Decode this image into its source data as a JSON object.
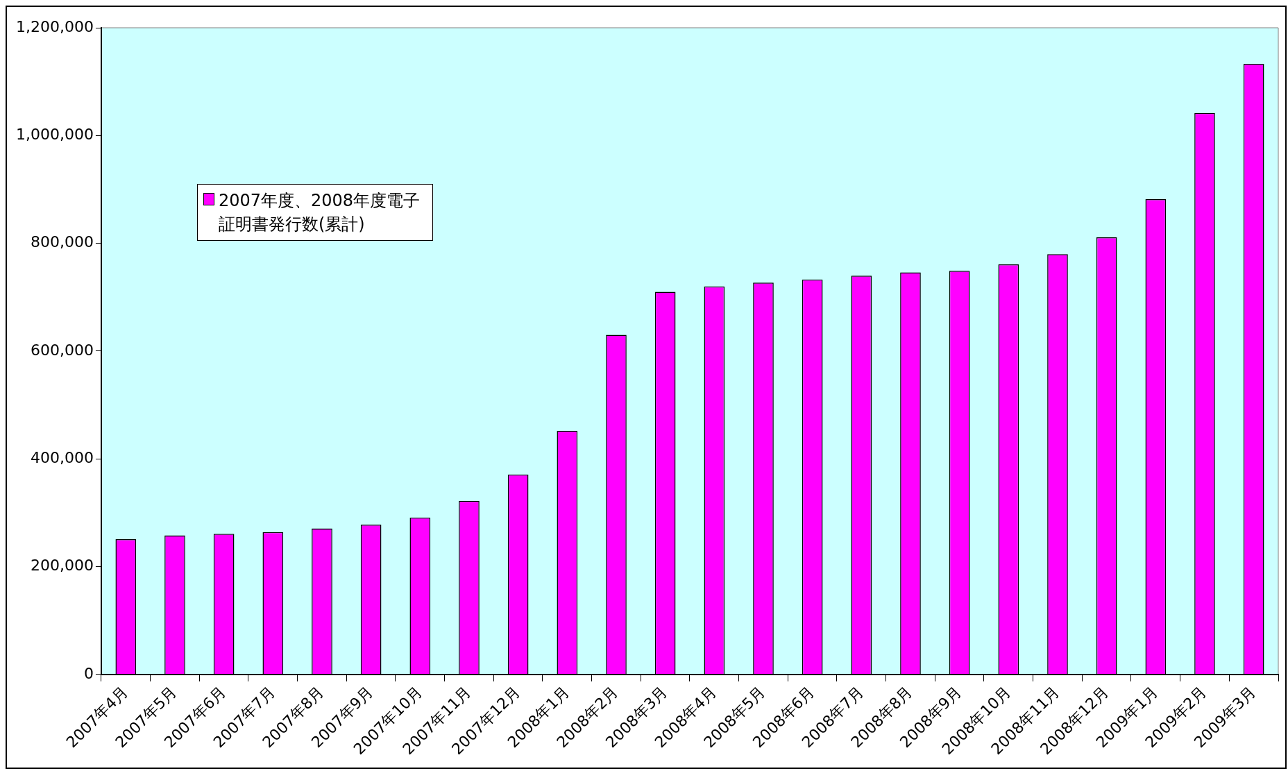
{
  "chart_data": {
    "type": "bar",
    "categories": [
      "2007年4月",
      "2007年5月",
      "2007年6月",
      "2007年7月",
      "2007年8月",
      "2007年9月",
      "2007年10月",
      "2007年11月",
      "2007年12月",
      "2008年1月",
      "2008年2月",
      "2008年3月",
      "2008年4月",
      "2008年5月",
      "2008年6月",
      "2008年7月",
      "2008年8月",
      "2008年9月",
      "2008年10月",
      "2008年11月",
      "2008年12月",
      "2009年1月",
      "2009年2月",
      "2009年3月"
    ],
    "series": [
      {
        "name": "2007年度、2008年度電子証明書発行数(累計)",
        "color": "#ff00ff",
        "values": [
          251000,
          258000,
          261000,
          264000,
          271000,
          278000,
          291000,
          322000,
          371000,
          452000,
          630000,
          710000,
          720000,
          727000,
          733000,
          740000,
          746000,
          749000,
          761000,
          780000,
          811000,
          882000,
          1042000,
          1133000
        ]
      }
    ],
    "ylim": [
      0,
      1200000
    ],
    "yticks": [
      0,
      {
        "value": 200000,
        "label": "200,000"
      },
      {
        "value": 400000,
        "label": "400,000"
      },
      {
        "value": 600000,
        "label": "600,000"
      },
      {
        "value": 800000,
        "label": "800,000"
      },
      {
        "value": 1000000,
        "label": "1,000,000"
      },
      {
        "value": 1200000,
        "label": "1,200,000"
      }
    ],
    "grid": false,
    "legend": "top left"
  }
}
